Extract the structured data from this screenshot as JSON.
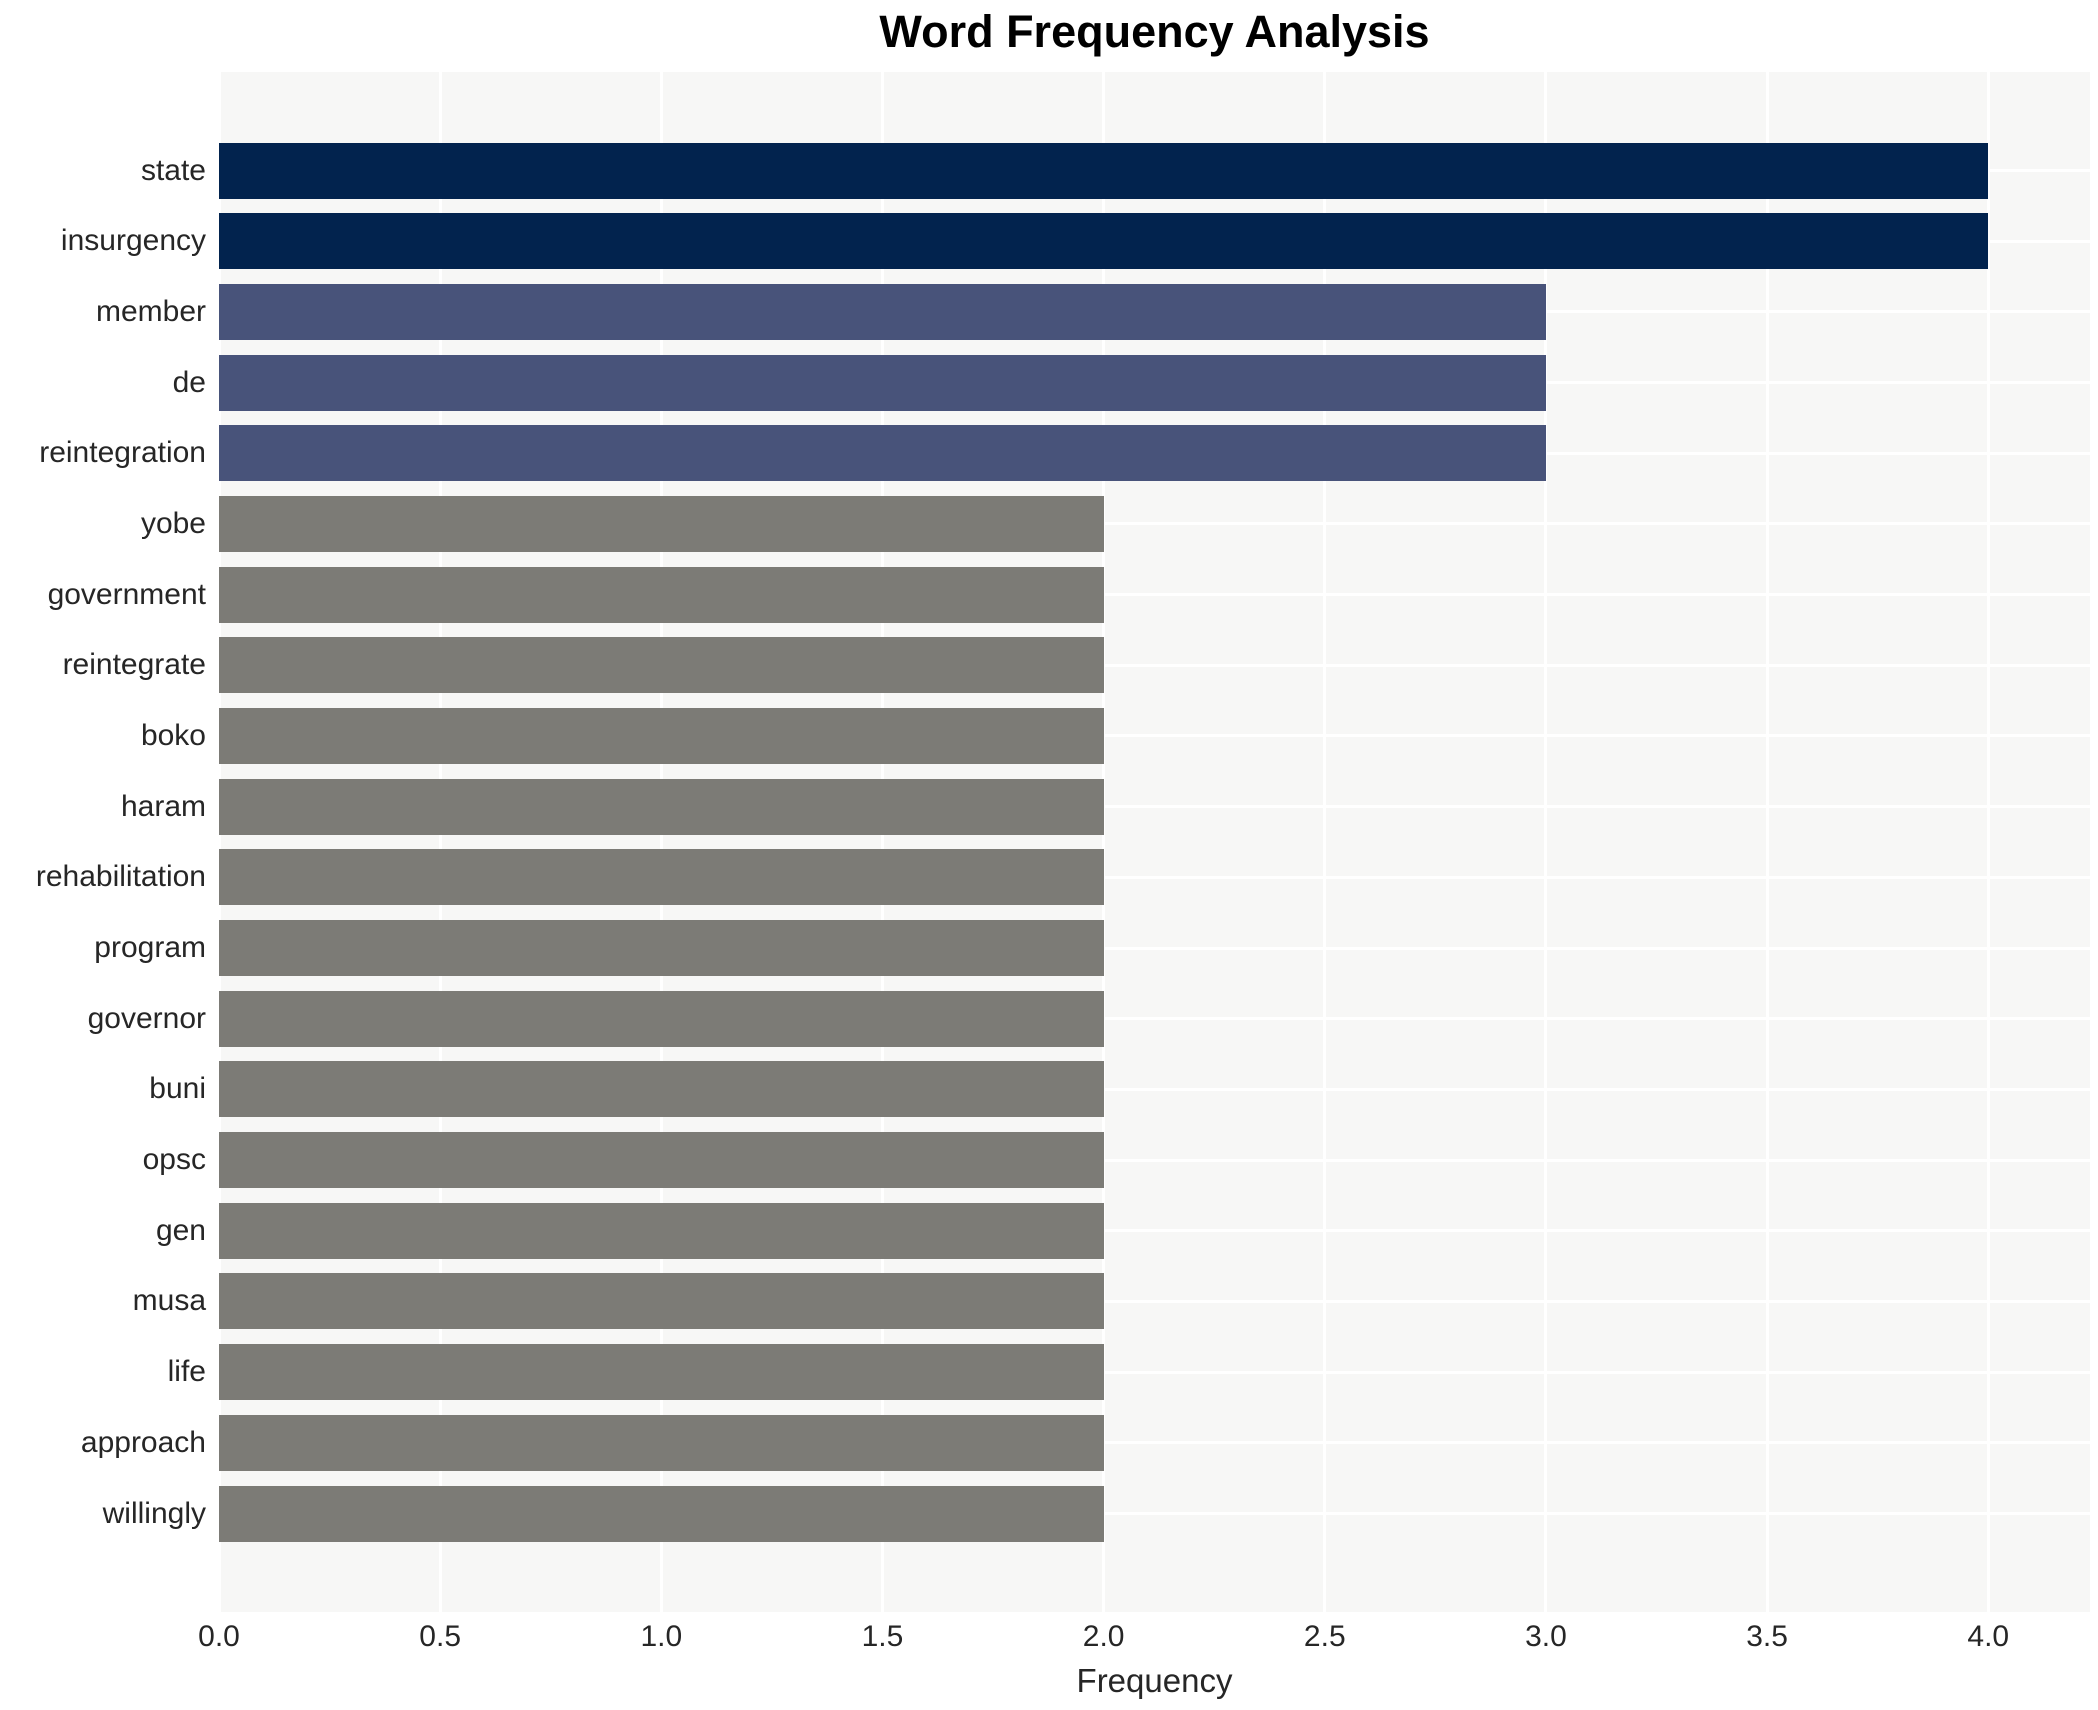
{
  "chart_data": {
    "type": "bar",
    "orientation": "horizontal",
    "title": "Word Frequency Analysis",
    "xlabel": "Frequency",
    "ylabel": "",
    "categories": [
      "state",
      "insurgency",
      "member",
      "de",
      "reintegration",
      "yobe",
      "government",
      "reintegrate",
      "boko",
      "haram",
      "rehabilitation",
      "program",
      "governor",
      "buni",
      "opsc",
      "gen",
      "musa",
      "life",
      "approach",
      "willingly"
    ],
    "values": [
      4,
      4,
      3,
      3,
      3,
      2,
      2,
      2,
      2,
      2,
      2,
      2,
      2,
      2,
      2,
      2,
      2,
      2,
      2,
      2
    ],
    "bar_colors": [
      "#02234e",
      "#02234e",
      "#48537a",
      "#48537a",
      "#48537a",
      "#7c7b76",
      "#7c7b76",
      "#7c7b76",
      "#7c7b76",
      "#7c7b76",
      "#7c7b76",
      "#7c7b76",
      "#7c7b76",
      "#7c7b76",
      "#7c7b76",
      "#7c7b76",
      "#7c7b76",
      "#7c7b76",
      "#7c7b76",
      "#7c7b76"
    ],
    "xticks": [
      "0.0",
      "0.5",
      "1.0",
      "1.5",
      "2.0",
      "2.5",
      "3.0",
      "3.5",
      "4.0"
    ],
    "xtick_values": [
      0,
      0.5,
      1,
      1.5,
      2,
      2.5,
      3,
      3.5,
      4
    ],
    "xlim": [
      0,
      4.23
    ],
    "grid": true,
    "legend": false,
    "plot_bg_color": "#f7f7f6",
    "grid_color": "#ffffff",
    "text_color": "#262626",
    "title_color": "#000000"
  }
}
